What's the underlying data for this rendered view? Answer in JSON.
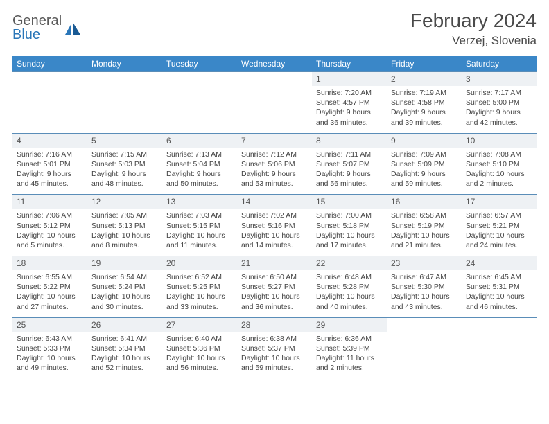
{
  "logo": {
    "word1": "General",
    "word2": "Blue"
  },
  "title": "February 2024",
  "subtitle": "Verzej, Slovenia",
  "colors": {
    "header_bg": "#3a87c8",
    "header_text": "#ffffff",
    "border": "#5a8db8",
    "daynum_bg": "#eef1f4",
    "body_text": "#444444",
    "logo_gray": "#5a5a5a",
    "logo_blue": "#2a76b8"
  },
  "day_headers": [
    "Sunday",
    "Monday",
    "Tuesday",
    "Wednesday",
    "Thursday",
    "Friday",
    "Saturday"
  ],
  "weeks": [
    {
      "nums": [
        "",
        "",
        "",
        "",
        "1",
        "2",
        "3"
      ],
      "cells": [
        null,
        null,
        null,
        null,
        {
          "sunrise": "7:20 AM",
          "sunset": "4:57 PM",
          "daylight": "9 hours and 36 minutes."
        },
        {
          "sunrise": "7:19 AM",
          "sunset": "4:58 PM",
          "daylight": "9 hours and 39 minutes."
        },
        {
          "sunrise": "7:17 AM",
          "sunset": "5:00 PM",
          "daylight": "9 hours and 42 minutes."
        }
      ]
    },
    {
      "nums": [
        "4",
        "5",
        "6",
        "7",
        "8",
        "9",
        "10"
      ],
      "cells": [
        {
          "sunrise": "7:16 AM",
          "sunset": "5:01 PM",
          "daylight": "9 hours and 45 minutes."
        },
        {
          "sunrise": "7:15 AM",
          "sunset": "5:03 PM",
          "daylight": "9 hours and 48 minutes."
        },
        {
          "sunrise": "7:13 AM",
          "sunset": "5:04 PM",
          "daylight": "9 hours and 50 minutes."
        },
        {
          "sunrise": "7:12 AM",
          "sunset": "5:06 PM",
          "daylight": "9 hours and 53 minutes."
        },
        {
          "sunrise": "7:11 AM",
          "sunset": "5:07 PM",
          "daylight": "9 hours and 56 minutes."
        },
        {
          "sunrise": "7:09 AM",
          "sunset": "5:09 PM",
          "daylight": "9 hours and 59 minutes."
        },
        {
          "sunrise": "7:08 AM",
          "sunset": "5:10 PM",
          "daylight": "10 hours and 2 minutes."
        }
      ]
    },
    {
      "nums": [
        "11",
        "12",
        "13",
        "14",
        "15",
        "16",
        "17"
      ],
      "cells": [
        {
          "sunrise": "7:06 AM",
          "sunset": "5:12 PM",
          "daylight": "10 hours and 5 minutes."
        },
        {
          "sunrise": "7:05 AM",
          "sunset": "5:13 PM",
          "daylight": "10 hours and 8 minutes."
        },
        {
          "sunrise": "7:03 AM",
          "sunset": "5:15 PM",
          "daylight": "10 hours and 11 minutes."
        },
        {
          "sunrise": "7:02 AM",
          "sunset": "5:16 PM",
          "daylight": "10 hours and 14 minutes."
        },
        {
          "sunrise": "7:00 AM",
          "sunset": "5:18 PM",
          "daylight": "10 hours and 17 minutes."
        },
        {
          "sunrise": "6:58 AM",
          "sunset": "5:19 PM",
          "daylight": "10 hours and 21 minutes."
        },
        {
          "sunrise": "6:57 AM",
          "sunset": "5:21 PM",
          "daylight": "10 hours and 24 minutes."
        }
      ]
    },
    {
      "nums": [
        "18",
        "19",
        "20",
        "21",
        "22",
        "23",
        "24"
      ],
      "cells": [
        {
          "sunrise": "6:55 AM",
          "sunset": "5:22 PM",
          "daylight": "10 hours and 27 minutes."
        },
        {
          "sunrise": "6:54 AM",
          "sunset": "5:24 PM",
          "daylight": "10 hours and 30 minutes."
        },
        {
          "sunrise": "6:52 AM",
          "sunset": "5:25 PM",
          "daylight": "10 hours and 33 minutes."
        },
        {
          "sunrise": "6:50 AM",
          "sunset": "5:27 PM",
          "daylight": "10 hours and 36 minutes."
        },
        {
          "sunrise": "6:48 AM",
          "sunset": "5:28 PM",
          "daylight": "10 hours and 40 minutes."
        },
        {
          "sunrise": "6:47 AM",
          "sunset": "5:30 PM",
          "daylight": "10 hours and 43 minutes."
        },
        {
          "sunrise": "6:45 AM",
          "sunset": "5:31 PM",
          "daylight": "10 hours and 46 minutes."
        }
      ]
    },
    {
      "nums": [
        "25",
        "26",
        "27",
        "28",
        "29",
        "",
        ""
      ],
      "cells": [
        {
          "sunrise": "6:43 AM",
          "sunset": "5:33 PM",
          "daylight": "10 hours and 49 minutes."
        },
        {
          "sunrise": "6:41 AM",
          "sunset": "5:34 PM",
          "daylight": "10 hours and 52 minutes."
        },
        {
          "sunrise": "6:40 AM",
          "sunset": "5:36 PM",
          "daylight": "10 hours and 56 minutes."
        },
        {
          "sunrise": "6:38 AM",
          "sunset": "5:37 PM",
          "daylight": "10 hours and 59 minutes."
        },
        {
          "sunrise": "6:36 AM",
          "sunset": "5:39 PM",
          "daylight": "11 hours and 2 minutes."
        },
        null,
        null
      ]
    }
  ],
  "labels": {
    "sunrise": "Sunrise: ",
    "sunset": "Sunset: ",
    "daylight": "Daylight: "
  }
}
